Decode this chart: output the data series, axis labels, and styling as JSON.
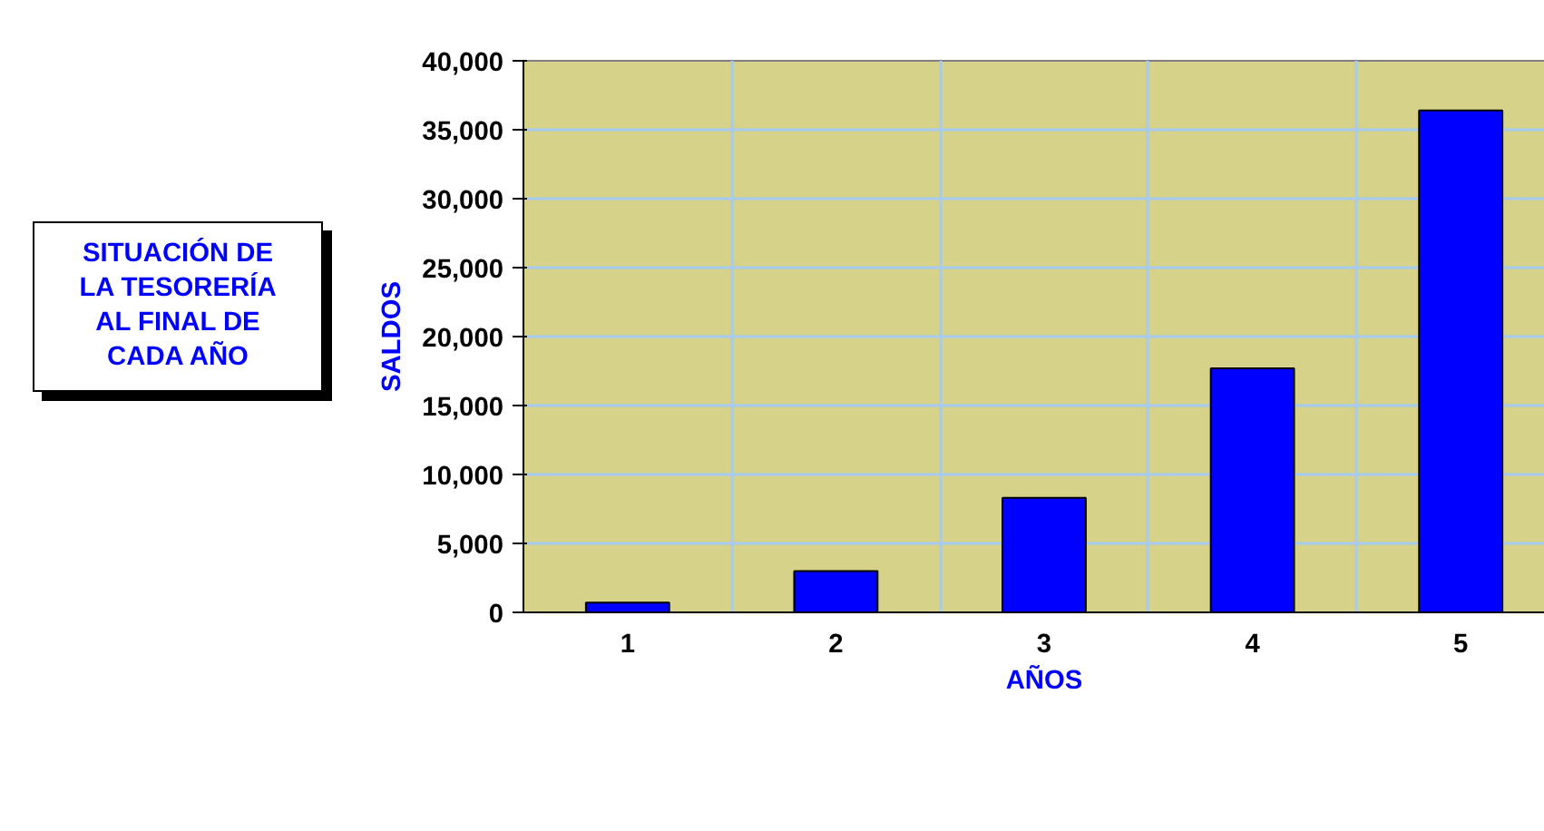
{
  "chart_data": {
    "type": "bar",
    "title": "SITUACIÓN DE LA TESORERÍA AL FINAL DE CADA AÑO",
    "xlabel": "AÑOS",
    "ylabel": "SALDOS",
    "categories": [
      "1",
      "2",
      "3",
      "4",
      "5"
    ],
    "values": [
      700,
      3000,
      8300,
      17700,
      36400
    ],
    "color": "#0000ff",
    "ylim": [
      0,
      40000
    ],
    "yticks": [
      {
        "value": 0,
        "label": "0"
      },
      {
        "value": 5000,
        "label": "5,000"
      },
      {
        "value": 10000,
        "label": "10,000"
      },
      {
        "value": 15000,
        "label": "15,000"
      },
      {
        "value": 20000,
        "label": "20,000"
      },
      {
        "value": 25000,
        "label": "25,000"
      },
      {
        "value": 30000,
        "label": "30,000"
      },
      {
        "value": 35000,
        "label": "35,000"
      },
      {
        "value": 40000,
        "label": "40,000"
      }
    ],
    "grid": true
  }
}
